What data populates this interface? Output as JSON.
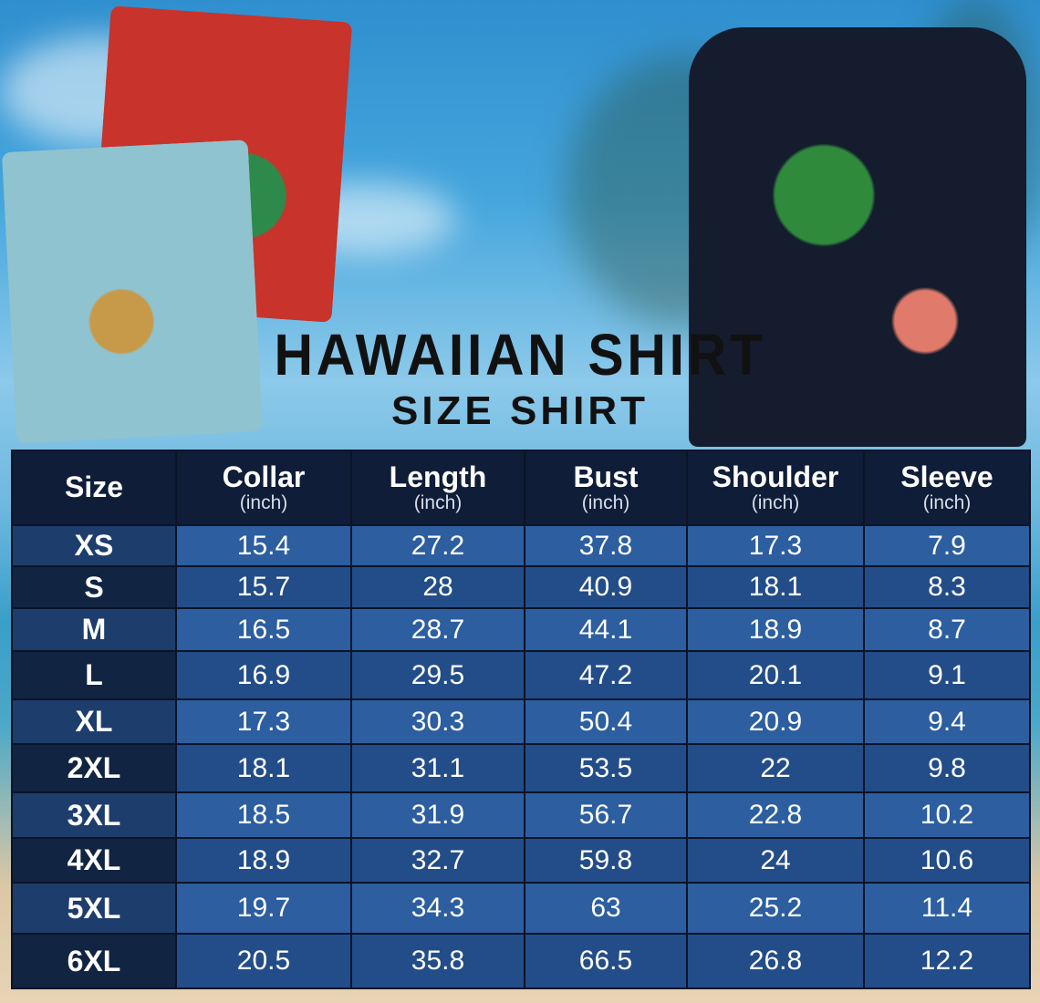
{
  "title": "HAWAIIAN SHIRT",
  "subtitle": "SIZE SHIRT",
  "table": {
    "headers": [
      {
        "label": "Size",
        "unit": ""
      },
      {
        "label": "Collar",
        "unit": "(inch)"
      },
      {
        "label": "Length",
        "unit": "(inch)"
      },
      {
        "label": "Bust",
        "unit": "(inch)"
      },
      {
        "label": "Shoulder",
        "unit": "(inch)"
      },
      {
        "label": "Sleeve",
        "unit": "(inch)"
      }
    ],
    "rows": [
      [
        "XS",
        "15.4",
        "27.2",
        "37.8",
        "17.3",
        "7.9"
      ],
      [
        "S",
        "15.7",
        "28",
        "40.9",
        "18.1",
        "8.3"
      ],
      [
        "M",
        "16.5",
        "28.7",
        "44.1",
        "18.9",
        "8.7"
      ],
      [
        "L",
        "16.9",
        "29.5",
        "47.2",
        "20.1",
        "9.1"
      ],
      [
        "XL",
        "17.3",
        "30.3",
        "50.4",
        "20.9",
        "9.4"
      ],
      [
        "2XL",
        "18.1",
        "31.1",
        "53.5",
        "22",
        "9.8"
      ],
      [
        "3XL",
        "18.5",
        "31.9",
        "56.7",
        "22.8",
        "10.2"
      ],
      [
        "4XL",
        "18.9",
        "32.7",
        "59.8",
        "24",
        "10.6"
      ],
      [
        "5XL",
        "19.7",
        "34.3",
        "63",
        "25.2",
        "11.4"
      ],
      [
        "6XL",
        "20.5",
        "35.8",
        "66.5",
        "26.8",
        "12.2"
      ]
    ]
  },
  "colors": {
    "header": "#0f1d38",
    "row_light": "#2c5ea0",
    "row_dark": "#234d88"
  }
}
